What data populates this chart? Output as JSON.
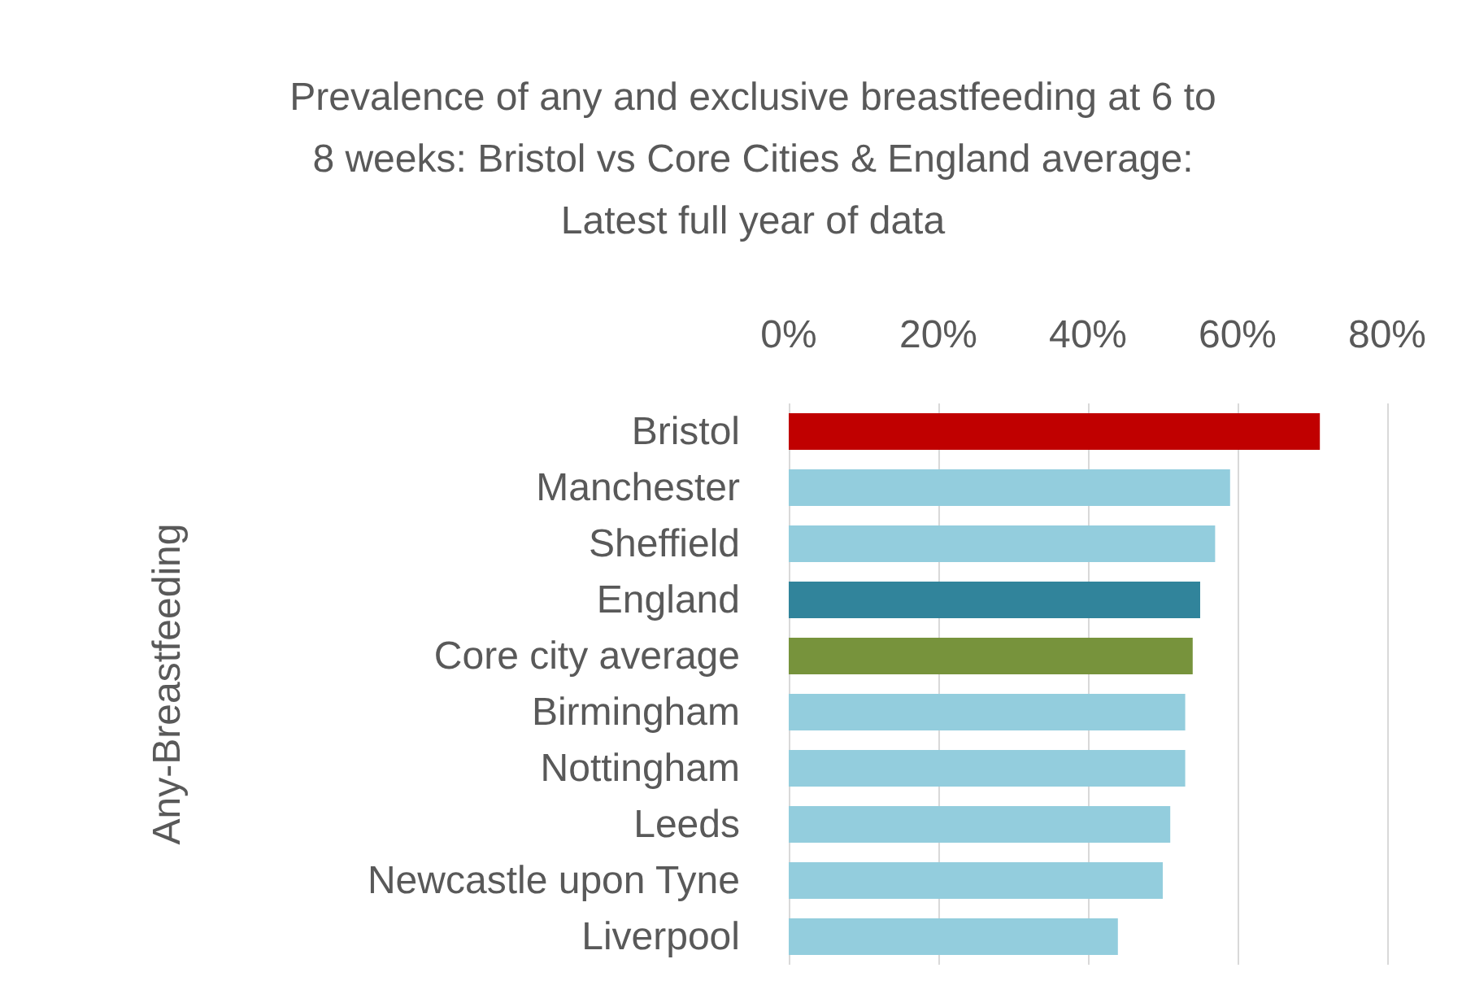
{
  "chart_data": {
    "type": "bar",
    "orientation": "horizontal",
    "title": "Prevalence of any and exclusive breastfeeding at 6 to\n8 weeks: Bristol vs Core Cities & England average:\nLatest full year of data",
    "ylabel": "Any-Breastfeeding",
    "categories": [
      "Bristol",
      "Manchester",
      "Sheffield",
      "England",
      "Core city average",
      "Birmingham",
      "Nottingham",
      "Leeds",
      "Newcastle upon Tyne",
      "Liverpool"
    ],
    "values": [
      71,
      59,
      57,
      55,
      54,
      53,
      53,
      51,
      50,
      44
    ],
    "colors": [
      "#c00000",
      "#93cddd",
      "#93cddd",
      "#31849b",
      "#77933c",
      "#93cddd",
      "#93cddd",
      "#93cddd",
      "#93cddd",
      "#93cddd"
    ],
    "xlim": [
      0,
      80
    ],
    "xticks": [
      {
        "value": 0,
        "label": "0%"
      },
      {
        "value": 20,
        "label": "20%"
      },
      {
        "value": 40,
        "label": "40%"
      },
      {
        "value": 60,
        "label": "60%"
      },
      {
        "value": 80,
        "label": "80%"
      }
    ],
    "grid": "x"
  }
}
